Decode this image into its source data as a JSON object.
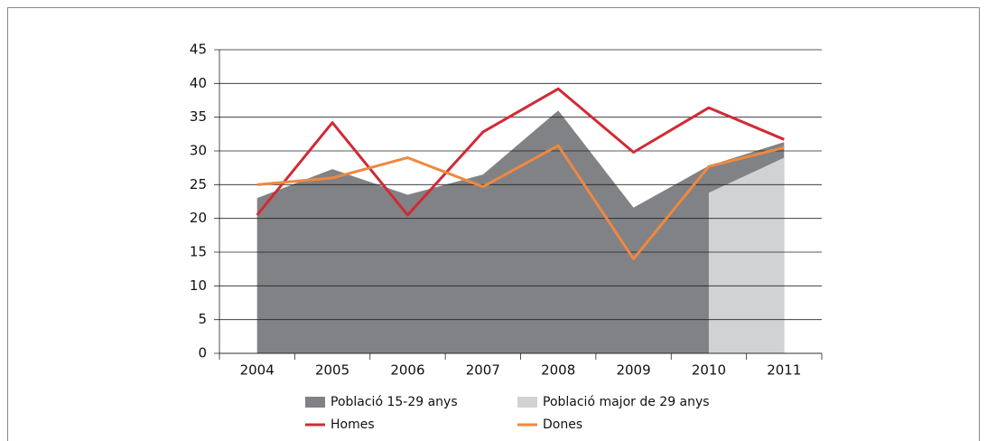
{
  "chart_data": {
    "type": "line",
    "categories": [
      "2004",
      "2005",
      "2006",
      "2007",
      "2008",
      "2009",
      "2010",
      "2011"
    ],
    "series": [
      {
        "name": "Població 15-29 anys",
        "type": "area",
        "color": "#818285",
        "values": [
          23,
          27.3,
          23.5,
          26.5,
          36,
          21.6,
          27.8,
          31.3
        ]
      },
      {
        "name": "Població major de 29 anys",
        "type": "area",
        "color": "#d1d2d4",
        "values": [
          null,
          null,
          null,
          null,
          null,
          null,
          23.8,
          29
        ]
      },
      {
        "name": "Homes",
        "type": "line",
        "color": "#d12a35",
        "values": [
          20.5,
          34.2,
          20.5,
          32.8,
          39.2,
          29.8,
          36.4,
          31.7
        ]
      },
      {
        "name": "Dones",
        "type": "line",
        "color": "#f0883f",
        "values": [
          25,
          26,
          29,
          24.7,
          30.8,
          14,
          27.7,
          30.5
        ]
      }
    ],
    "ylim": [
      0,
      45
    ],
    "yticks": [
      0,
      5,
      10,
      15,
      20,
      25,
      30,
      35,
      40,
      45
    ],
    "grid": true
  }
}
